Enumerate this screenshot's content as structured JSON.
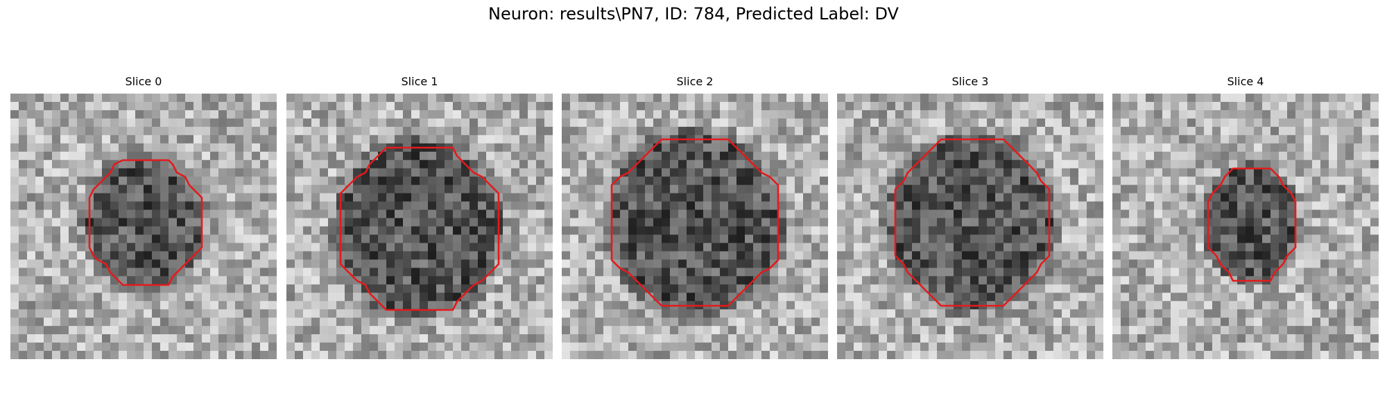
{
  "figure": {
    "title": "Neuron: results\\PN7, ID: 784, Predicted Label: DV"
  },
  "panels": [
    {
      "title": "Slice 0"
    },
    {
      "title": "Slice 1"
    },
    {
      "title": "Slice 2"
    },
    {
      "title": "Slice 3"
    },
    {
      "title": "Slice 4"
    }
  ],
  "colors": {
    "contour": "#e41a1c",
    "background": "#ffffff"
  },
  "colormap": "gray"
}
